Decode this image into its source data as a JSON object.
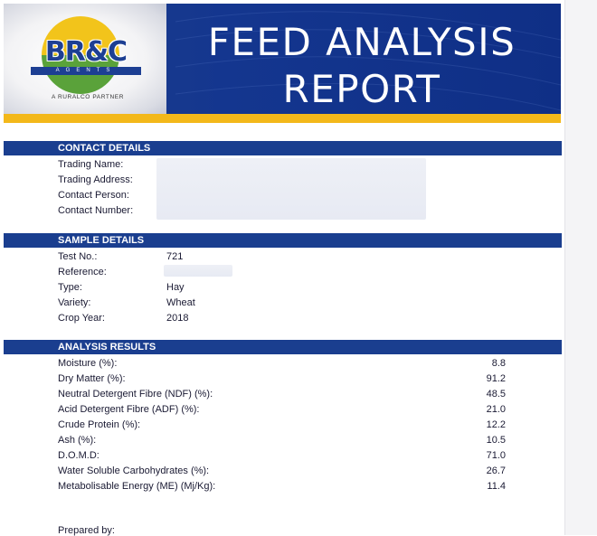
{
  "header": {
    "logo": {
      "brand": "BR&C",
      "sub": "AGENTS",
      "partner": "A RURALCO PARTNER"
    },
    "title_line1": "FEED ANALYSIS",
    "title_line2": "REPORT"
  },
  "contact": {
    "heading": "CONTACT DETAILS",
    "labels": [
      "Trading Name:",
      "Trading Address:",
      "Contact Person:",
      "Contact Number:"
    ]
  },
  "sample": {
    "heading": "SAMPLE DETAILS",
    "rows": [
      {
        "label": "Test No.:",
        "value": "721"
      },
      {
        "label": "Reference:",
        "value": ""
      },
      {
        "label": "Type:",
        "value": "Hay"
      },
      {
        "label": "Variety:",
        "value": "Wheat"
      },
      {
        "label": "Crop Year:",
        "value": "2018"
      }
    ]
  },
  "analysis": {
    "heading": "ANALYSIS RESULTS",
    "rows": [
      {
        "label": "Moisture (%):",
        "value": "8.8"
      },
      {
        "label": "Dry Matter (%):",
        "value": "91.2"
      },
      {
        "label": "Neutral Detergent Fibre (NDF) (%):",
        "value": "48.5"
      },
      {
        "label": "Acid Detergent Fibre (ADF) (%):",
        "value": "21.0"
      },
      {
        "label": "Crude Protein (%):",
        "value": "12.2"
      },
      {
        "label": "Ash (%):",
        "value": "10.5"
      },
      {
        "label": "D.O.M.D:",
        "value": "71.0"
      },
      {
        "label": "Water Soluble Carbohydrates (%):",
        "value": "26.7"
      },
      {
        "label": "Metabolisable Energy (ME) (Mj/Kg):",
        "value": "11.4"
      }
    ]
  },
  "footer": {
    "prepared_by": "Prepared by:"
  },
  "colors": {
    "navy": "#1a3e8f",
    "gold": "#f3b81a",
    "green": "#5aa23a"
  }
}
